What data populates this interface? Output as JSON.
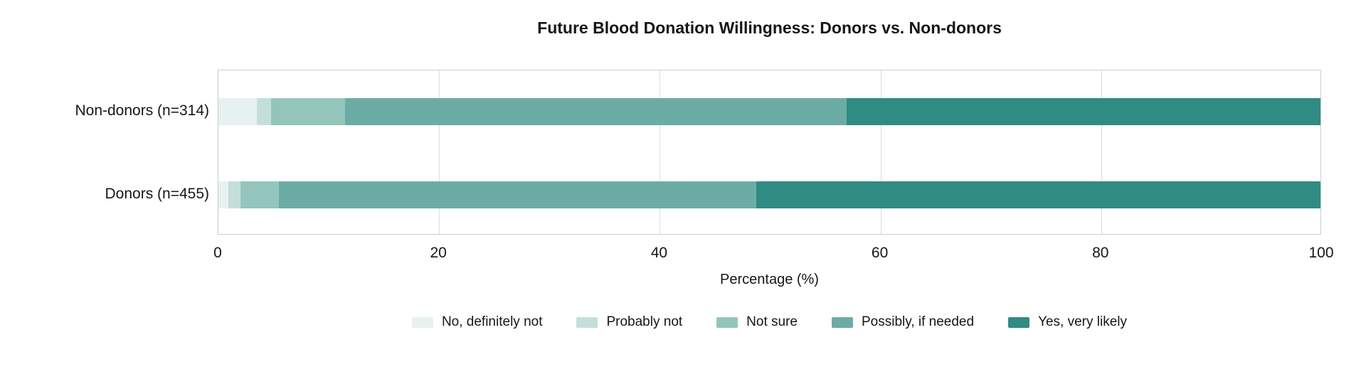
{
  "chart_data": {
    "type": "bar",
    "orientation": "horizontal",
    "stacked": true,
    "title": "Future Blood Donation Willingness: Donors vs. Non-donors",
    "xlabel": "Percentage (%)",
    "xlim": [
      0,
      100
    ],
    "xticks": [
      0,
      20,
      40,
      60,
      80,
      100
    ],
    "grid": "vertical",
    "legend_position": "bottom",
    "categories": [
      "Non-donors (n=314)",
      "Donors (n=455)"
    ],
    "series": [
      {
        "name": "No, definitely not",
        "color": "#e7f2f0",
        "values": [
          3.5,
          0.9
        ]
      },
      {
        "name": "Probably not",
        "color": "#c4dfda",
        "values": [
          1.3,
          1.1
        ]
      },
      {
        "name": "Not sure",
        "color": "#94c5bd",
        "values": [
          6.7,
          3.5
        ]
      },
      {
        "name": "Possibly, if needed",
        "color": "#6bada5",
        "values": [
          45.5,
          43.3
        ]
      },
      {
        "name": "Yes, very likely",
        "color": "#2e8c83",
        "values": [
          43.0,
          51.2
        ]
      }
    ]
  }
}
